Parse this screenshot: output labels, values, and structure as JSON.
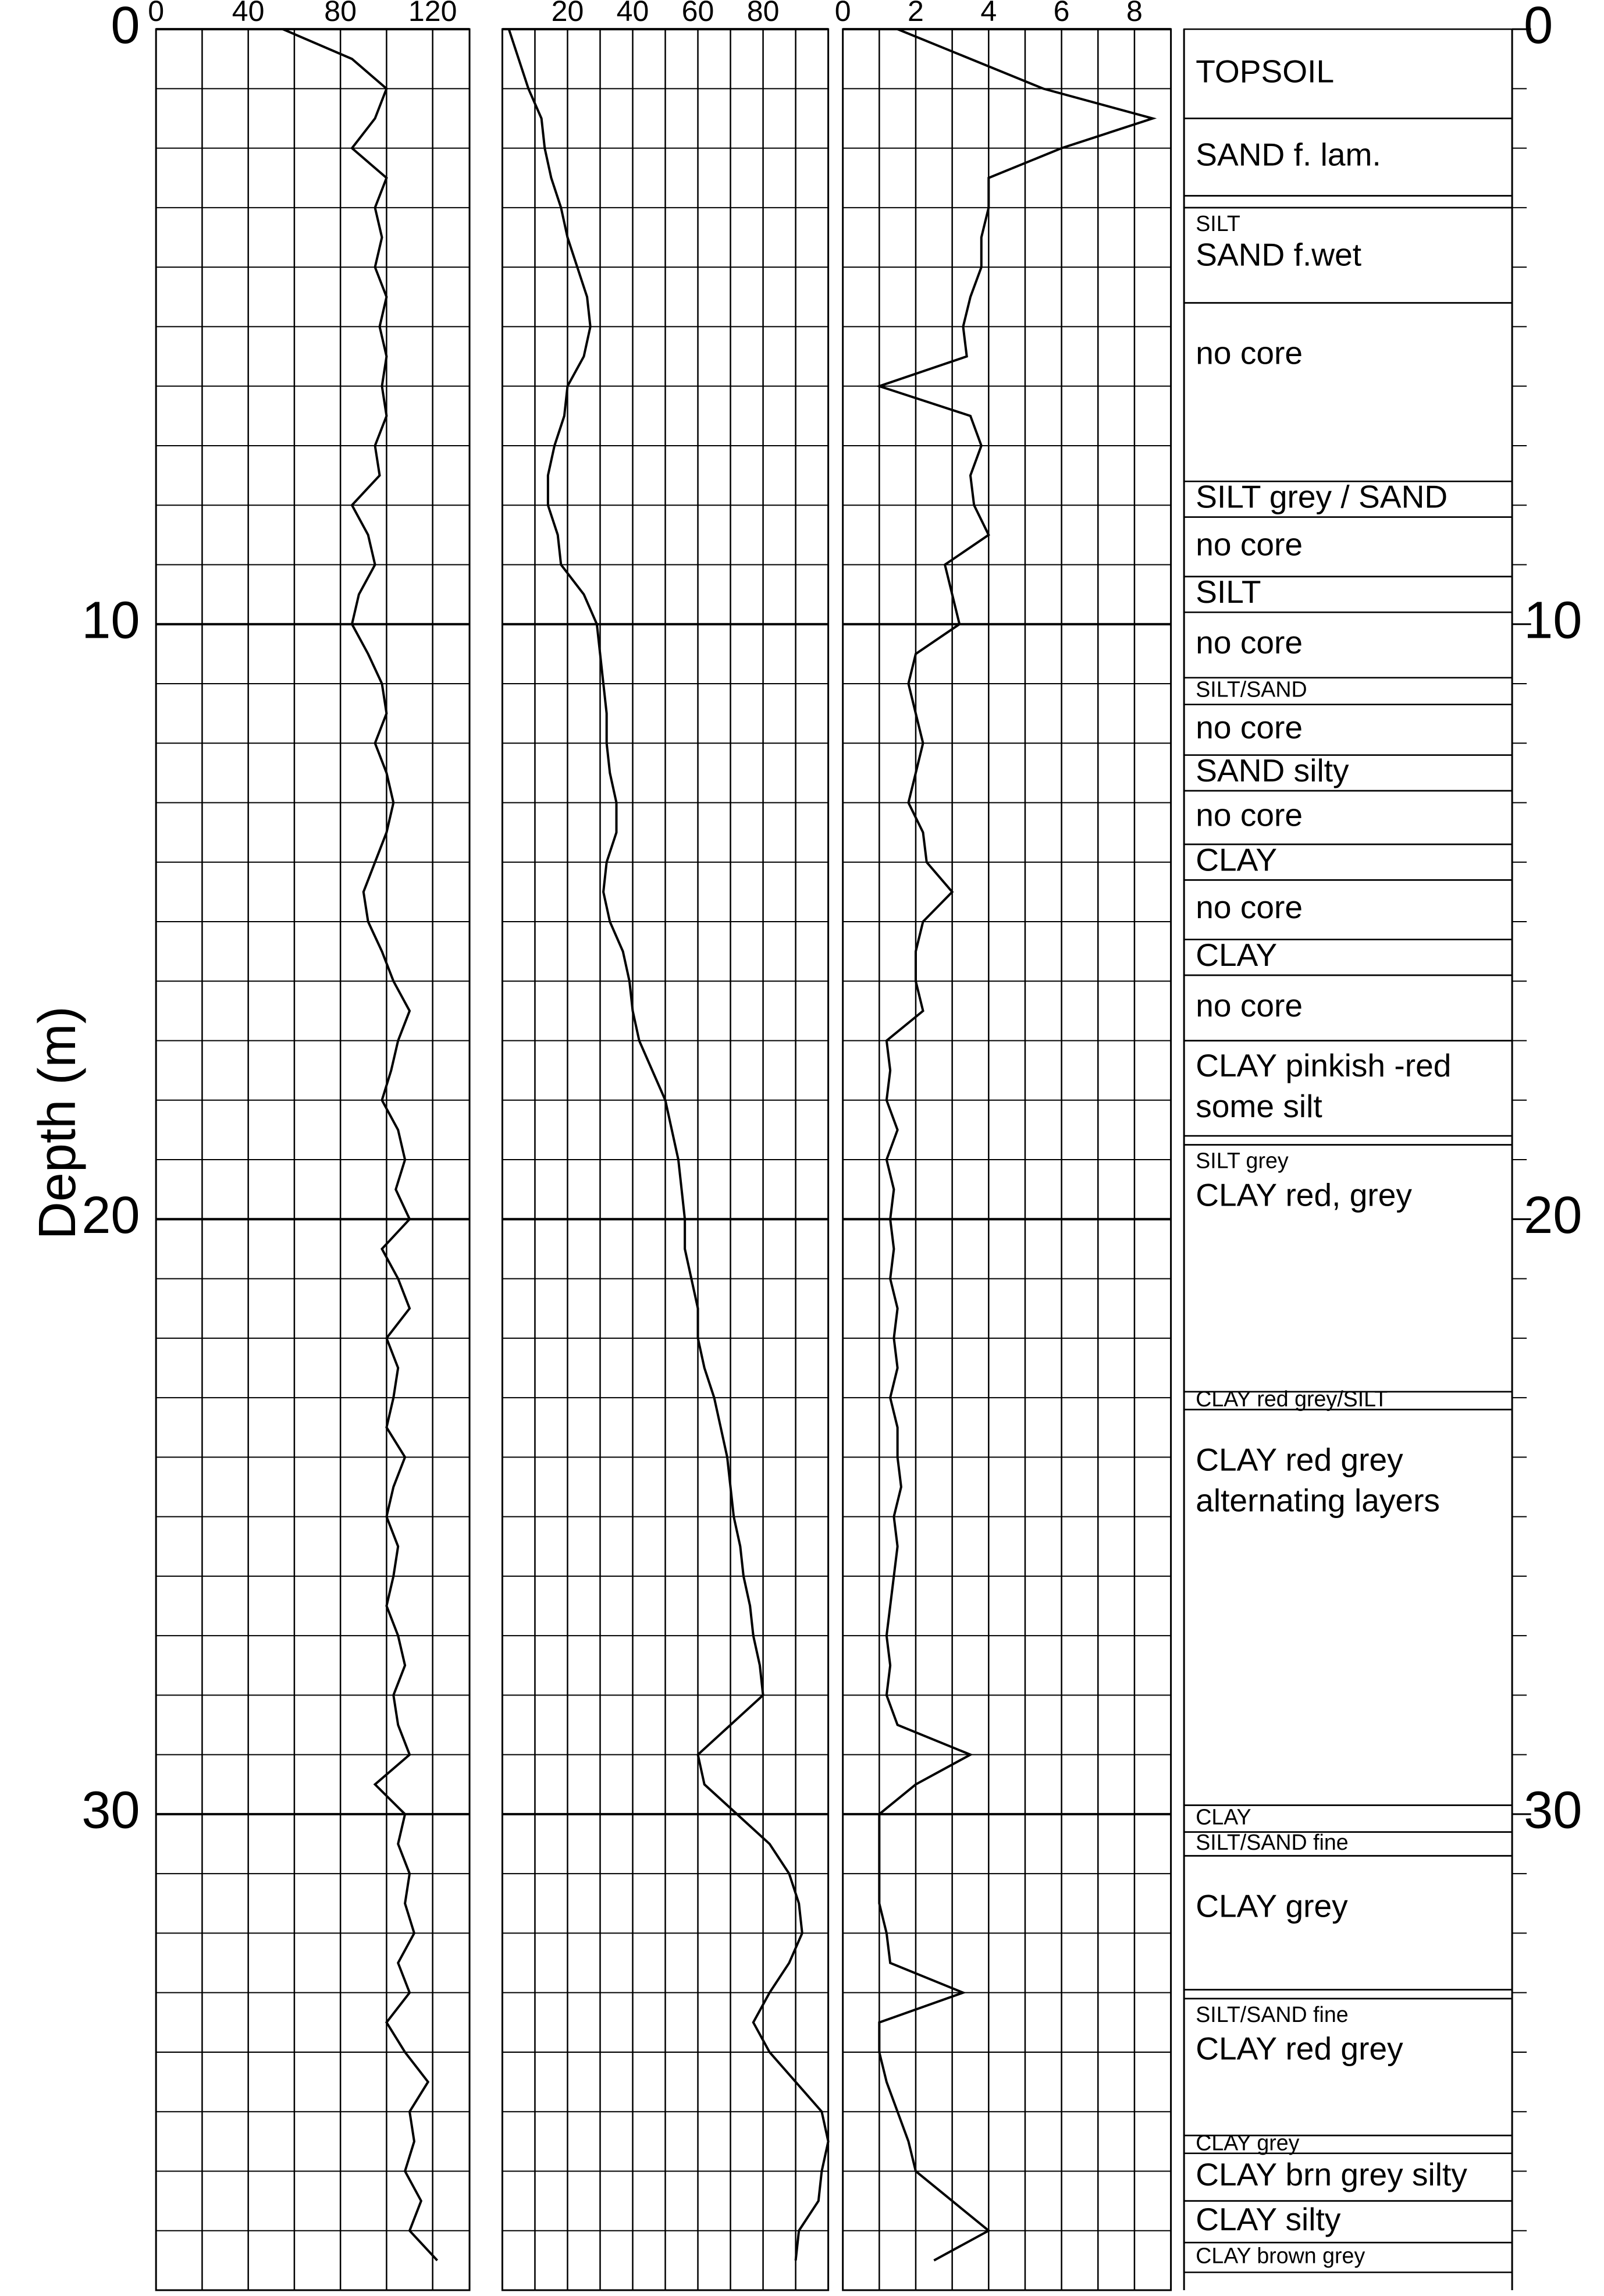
{
  "chart_data": {
    "type": "well-log",
    "ylabel": "Depth (m)",
    "ylim": [
      0,
      38
    ],
    "yticks": [
      0,
      10,
      20,
      30
    ],
    "ygrid": [
      1,
      2,
      3,
      4,
      5,
      6,
      7,
      8,
      9,
      10,
      11,
      12,
      13,
      14,
      15,
      16,
      17,
      18,
      19,
      20,
      21,
      22,
      23,
      24,
      25,
      26,
      27,
      28,
      29,
      30,
      31,
      32,
      33,
      34,
      35,
      36,
      37
    ],
    "y": [
      0,
      0.5,
      1,
      1.5,
      2,
      2.5,
      3,
      3.5,
      4,
      4.5,
      5,
      5.5,
      6,
      6.5,
      7,
      7.5,
      8,
      8.5,
      9,
      9.5,
      10,
      10.5,
      11,
      11.5,
      12,
      12.5,
      13,
      13.5,
      14,
      14.5,
      15,
      15.5,
      16,
      16.5,
      17,
      17.5,
      18,
      18.5,
      19,
      19.5,
      20,
      20.5,
      21,
      21.5,
      22,
      22.5,
      23,
      23.5,
      24,
      24.5,
      25,
      25.5,
      26,
      26.5,
      27,
      27.5,
      28,
      28.5,
      29,
      29.5,
      30,
      30.5,
      31,
      31.5,
      32,
      32.5,
      33,
      33.5,
      34,
      34.5,
      35,
      35.5,
      36,
      36.5,
      37,
      37.5
    ],
    "tracks": [
      {
        "color": "#000000",
        "xlim": [
          0,
          136
        ],
        "xticks": [
          0,
          40,
          80,
          120
        ],
        "xgrid": [
          20,
          40,
          60,
          80,
          100,
          120
        ],
        "values": [
          55,
          85,
          100,
          95,
          85,
          100,
          95,
          98,
          95,
          100,
          97,
          100,
          98,
          100,
          95,
          97,
          85,
          92,
          95,
          88,
          85,
          92,
          98,
          100,
          95,
          100,
          103,
          100,
          95,
          90,
          92,
          98,
          103,
          110,
          105,
          102,
          98,
          105,
          108,
          104,
          110,
          98,
          105,
          110,
          100,
          105,
          103,
          100,
          108,
          103,
          100,
          105,
          103,
          100,
          105,
          108,
          103,
          105,
          110,
          95,
          108,
          105,
          110,
          108,
          112,
          105,
          110,
          100,
          108,
          118,
          110,
          112,
          108,
          115,
          110,
          122
        ]
      },
      {
        "color": "#000000",
        "xlim": [
          0,
          100
        ],
        "xticks": [
          20,
          40,
          60,
          80
        ],
        "xgrid": [
          10,
          20,
          30,
          40,
          50,
          60,
          70,
          80,
          90
        ],
        "values": [
          2,
          5,
          8,
          12,
          13,
          15,
          18,
          20,
          23,
          26,
          27,
          25,
          20,
          19,
          16,
          14,
          14,
          17,
          18,
          25,
          29,
          30,
          31,
          32,
          32,
          33,
          35,
          35,
          32,
          31,
          33,
          37,
          39,
          40,
          42,
          46,
          50,
          52,
          54,
          55,
          56,
          56,
          58,
          60,
          60,
          62,
          65,
          67,
          69,
          70,
          71,
          73,
          74,
          76,
          77,
          79,
          80,
          70,
          60,
          62,
          72,
          82,
          88,
          91,
          92,
          88,
          82,
          77,
          82,
          90,
          98,
          100,
          98,
          97,
          91,
          90
        ]
      },
      {
        "color": "#000000",
        "xlim": [
          0,
          9
        ],
        "xticks": [
          0,
          2,
          4,
          6,
          8
        ],
        "xgrid": [
          1,
          2,
          3,
          4,
          5,
          6,
          7,
          8
        ],
        "values": [
          1.5,
          3.5,
          5.5,
          8.5,
          6,
          4,
          4,
          3.8,
          3.8,
          3.5,
          3.3,
          3.4,
          1,
          3.5,
          3.8,
          3.5,
          3.6,
          4,
          2.8,
          3,
          3.2,
          2,
          1.8,
          2,
          2.2,
          2,
          1.8,
          2.2,
          2.3,
          3,
          2.2,
          2,
          2,
          2.2,
          1.2,
          1.3,
          1.2,
          1.5,
          1.2,
          1.4,
          1.3,
          1.4,
          1.3,
          1.5,
          1.4,
          1.5,
          1.3,
          1.5,
          1.5,
          1.6,
          1.4,
          1.5,
          1.4,
          1.3,
          1.2,
          1.3,
          1.2,
          1.5,
          3.5,
          2,
          1,
          1,
          1,
          1,
          1.2,
          1.3,
          3.3,
          1,
          1,
          1.2,
          1.5,
          1.8,
          2,
          3,
          4,
          2.5
        ]
      }
    ],
    "lithology": [
      {
        "label": "TOPSOIL",
        "top": 0,
        "bottom": 1.5
      },
      {
        "label": "SAND f. lam.",
        "top": 1.5,
        "bottom": 2.8
      },
      {
        "label": "SILT",
        "top": 2.8,
        "bottom": 3.0
      },
      {
        "label": "SAND f.wet",
        "top": 3.0,
        "bottom": 4.6
      },
      {
        "label": "no core",
        "top": 4.6,
        "bottom": 7.6
      },
      {
        "label": "SILT grey / SAND",
        "top": 7.6,
        "bottom": 8.2
      },
      {
        "label": "no core",
        "top": 8.2,
        "bottom": 9.2
      },
      {
        "label": "SILT",
        "top": 9.2,
        "bottom": 9.8
      },
      {
        "label": "no core",
        "top": 9.8,
        "bottom": 10.9
      },
      {
        "label": "SILT/SAND",
        "top": 10.9,
        "bottom": 11.35
      },
      {
        "label": "no core",
        "top": 11.35,
        "bottom": 12.2
      },
      {
        "label": "SAND silty",
        "top": 12.2,
        "bottom": 12.8
      },
      {
        "label": "no core",
        "top": 12.8,
        "bottom": 13.7
      },
      {
        "label": "CLAY",
        "top": 13.7,
        "bottom": 14.3
      },
      {
        "label": "no core",
        "top": 14.3,
        "bottom": 15.3
      },
      {
        "label": "CLAY",
        "top": 15.3,
        "bottom": 15.9
      },
      {
        "label": "no core",
        "top": 15.9,
        "bottom": 17.0
      },
      {
        "label": [
          "CLAY pinkish -red",
          "some silt"
        ],
        "top": 17.0,
        "bottom": 18.6
      },
      {
        "label": "SILT grey",
        "top": 18.6,
        "bottom": 18.75
      },
      {
        "label": "CLAY red, grey",
        "top": 18.75,
        "bottom": 22.9
      },
      {
        "label": "CLAY red grey/SILT",
        "top": 22.9,
        "bottom": 23.2
      },
      {
        "label": [
          "CLAY red grey",
          " alternating layers"
        ],
        "top": 23.2,
        "bottom": 29.85
      },
      {
        "label": "CLAY",
        "top": 29.85,
        "bottom": 30.3
      },
      {
        "label": "SILT/SAND fine",
        "top": 30.3,
        "bottom": 30.7
      },
      {
        "label": "CLAY grey",
        "top": 30.7,
        "bottom": 32.95
      },
      {
        "label": "SILT/SAND fine",
        "top": 32.95,
        "bottom": 33.1
      },
      {
        "label": "CLAY red grey",
        "top": 33.1,
        "bottom": 35.4
      },
      {
        "label": "CLAY grey",
        "top": 35.4,
        "bottom": 35.7
      },
      {
        "label": "CLAY brn grey silty",
        "top": 35.7,
        "bottom": 36.5
      },
      {
        "label": "CLAY silty",
        "top": 36.5,
        "bottom": 37.2
      },
      {
        "label": "CLAY brown grey",
        "top": 37.2,
        "bottom": 37.7
      }
    ]
  }
}
